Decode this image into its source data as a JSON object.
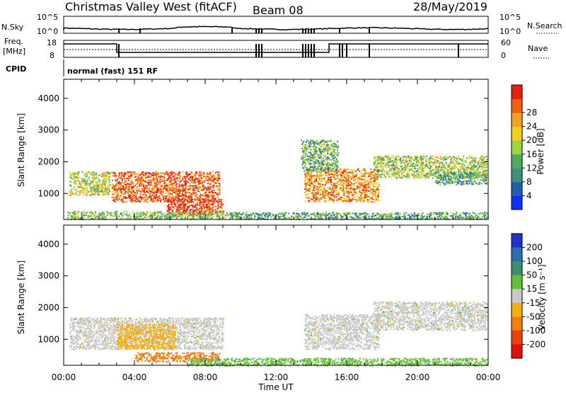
{
  "header": {
    "title": "Christmas Valley West (fitACF)",
    "beam": "Beam 08",
    "date": "28/May/2019"
  },
  "top_panels": {
    "nsky_label": "N.Sky",
    "nsky_ticks": [
      "10^5",
      "10^0"
    ],
    "nsearch_label": "N.Search",
    "nsearch_ticks": [
      "10^5",
      "10^0"
    ],
    "freq_label_1": "Freq.",
    "freq_label_2": "[MHz]",
    "freq_ticks": [
      "18",
      "8"
    ],
    "nave_label": "Nave",
    "nave_ticks": [
      "60",
      "0"
    ],
    "cpid_label": "CPID",
    "cpid_text": "normal (fast) 151 RF"
  },
  "chart_data": [
    {
      "type": "heatmap",
      "panel": "power",
      "ylabel": "Slant Range [km]",
      "xlabel": "Time UT",
      "x_ticks": [
        "00:00",
        "04:00",
        "08:00",
        "12:00",
        "16:00",
        "20:00",
        "00:00"
      ],
      "y_ticks": [
        1000,
        2000,
        3000,
        4000
      ],
      "ylim": [
        180,
        4600
      ],
      "xlim_hours": [
        0,
        24
      ],
      "colorbar": {
        "label": "Power [dB]",
        "ticks": [
          "4",
          "8",
          "12",
          "16",
          "20",
          "24",
          "28"
        ],
        "range": [
          0,
          30
        ],
        "colors": [
          "#1030ff",
          "#2060b0",
          "#3f8f7a",
          "#52a85f",
          "#9ed444",
          "#f0d020",
          "#f5a020",
          "#f06010",
          "#e82010"
        ]
      },
      "scatter_regions": [
        {
          "t0": 0.3,
          "t1": 2.6,
          "r0": 950,
          "r1": 1700,
          "level": 0.55
        },
        {
          "t0": 2.7,
          "t1": 8.8,
          "r0": 750,
          "r1": 1700,
          "level": 0.85
        },
        {
          "t0": 5.8,
          "t1": 9.0,
          "r0": 350,
          "r1": 850,
          "level": 0.95
        },
        {
          "t0": 0.2,
          "t1": 9.0,
          "r0": 200,
          "r1": 450,
          "level": 0.45
        },
        {
          "t0": 13.6,
          "t1": 17.8,
          "r0": 750,
          "r1": 1800,
          "level": 0.75
        },
        {
          "t0": 13.4,
          "t1": 15.5,
          "r0": 1700,
          "r1": 2700,
          "level": 0.4
        },
        {
          "t0": 17.5,
          "t1": 23.9,
          "r0": 1500,
          "r1": 2200,
          "level": 0.5
        },
        {
          "t0": 21.0,
          "t1": 23.9,
          "r0": 1300,
          "r1": 1700,
          "level": 0.35
        },
        {
          "t0": 9.0,
          "t1": 24.0,
          "r0": 200,
          "r1": 420,
          "level": 0.35
        }
      ]
    },
    {
      "type": "heatmap",
      "panel": "velocity",
      "ylabel": "Slant Range [km]",
      "xlabel": "Time UT",
      "x_ticks": [
        "00:00",
        "04:00",
        "08:00",
        "12:00",
        "16:00",
        "20:00",
        "00:00"
      ],
      "y_ticks": [
        1000,
        2000,
        3000,
        4000
      ],
      "ylim": [
        180,
        4600
      ],
      "xlim_hours": [
        0,
        24
      ],
      "colorbar": {
        "label": "Velocity [m s⁻¹]",
        "ticks": [
          "200",
          "100",
          "50",
          "15",
          "-15",
          "-50",
          "-100",
          "-200"
        ],
        "colors": [
          "#2030c8",
          "#2a6fb0",
          "#3c8f6a",
          "#66c036",
          "#c8c8c8",
          "#f5b010",
          "#f08010",
          "#e84010",
          "#e01010"
        ]
      },
      "scatter_regions": [
        {
          "t0": 0.3,
          "t1": 9.0,
          "r0": 700,
          "r1": 1700,
          "level": "grey"
        },
        {
          "t0": 3.0,
          "t1": 6.3,
          "r0": 700,
          "r1": 1500,
          "level": "orange"
        },
        {
          "t0": 4.0,
          "t1": 8.8,
          "r0": 300,
          "r1": 600,
          "level": "dorange"
        },
        {
          "t0": 7.0,
          "t1": 24.0,
          "r0": 180,
          "r1": 420,
          "level": "green"
        },
        {
          "t0": 13.6,
          "t1": 17.8,
          "r0": 700,
          "r1": 1800,
          "level": "grey"
        },
        {
          "t0": 17.5,
          "t1": 23.9,
          "r0": 1300,
          "r1": 2200,
          "level": "grey"
        }
      ]
    }
  ],
  "colors": {
    "axis": "#000000",
    "background": "#ffffff"
  }
}
